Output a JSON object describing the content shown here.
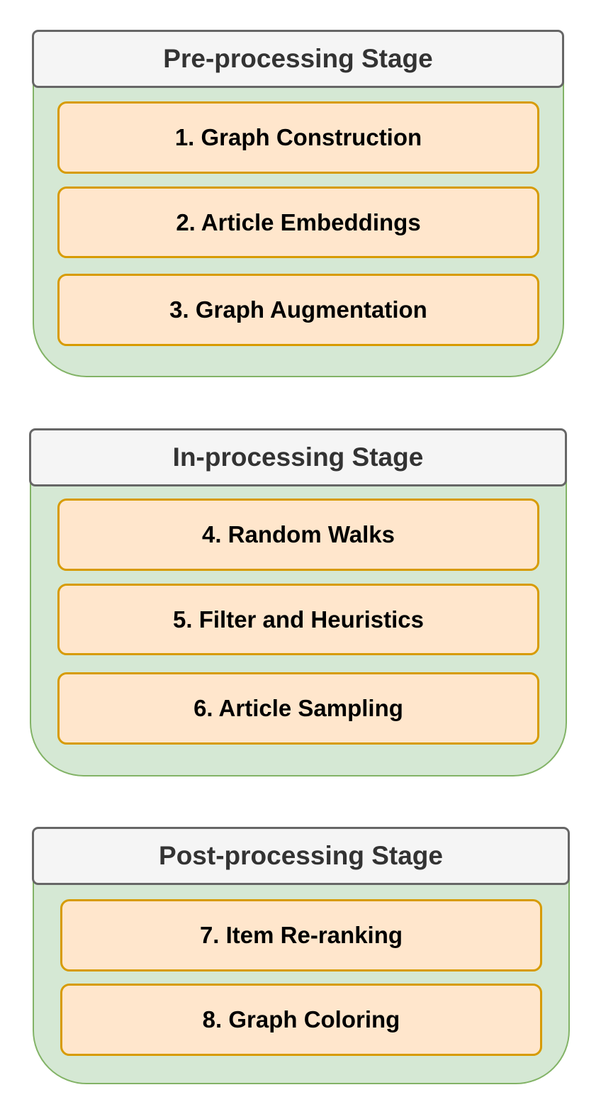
{
  "stages": [
    {
      "title": "Pre-processing Stage",
      "steps": [
        "1. Graph Construction",
        "2. Article Embeddings",
        "3. Graph Augmentation"
      ]
    },
    {
      "title": "In-processing Stage",
      "steps": [
        "4. Random Walks",
        "5. Filter and Heuristics",
        "6. Article Sampling"
      ]
    },
    {
      "title": "Post-processing Stage",
      "steps": [
        "7. Item Re-ranking",
        "8. Graph Coloring"
      ]
    }
  ],
  "colors": {
    "stage_fill": "#d5e8d4",
    "stage_border": "#82b366",
    "header_fill": "#f5f5f5",
    "header_border": "#666666",
    "header_text": "#333333",
    "step_fill": "#ffe6cc",
    "step_border": "#d79b00",
    "step_text": "#000000"
  }
}
